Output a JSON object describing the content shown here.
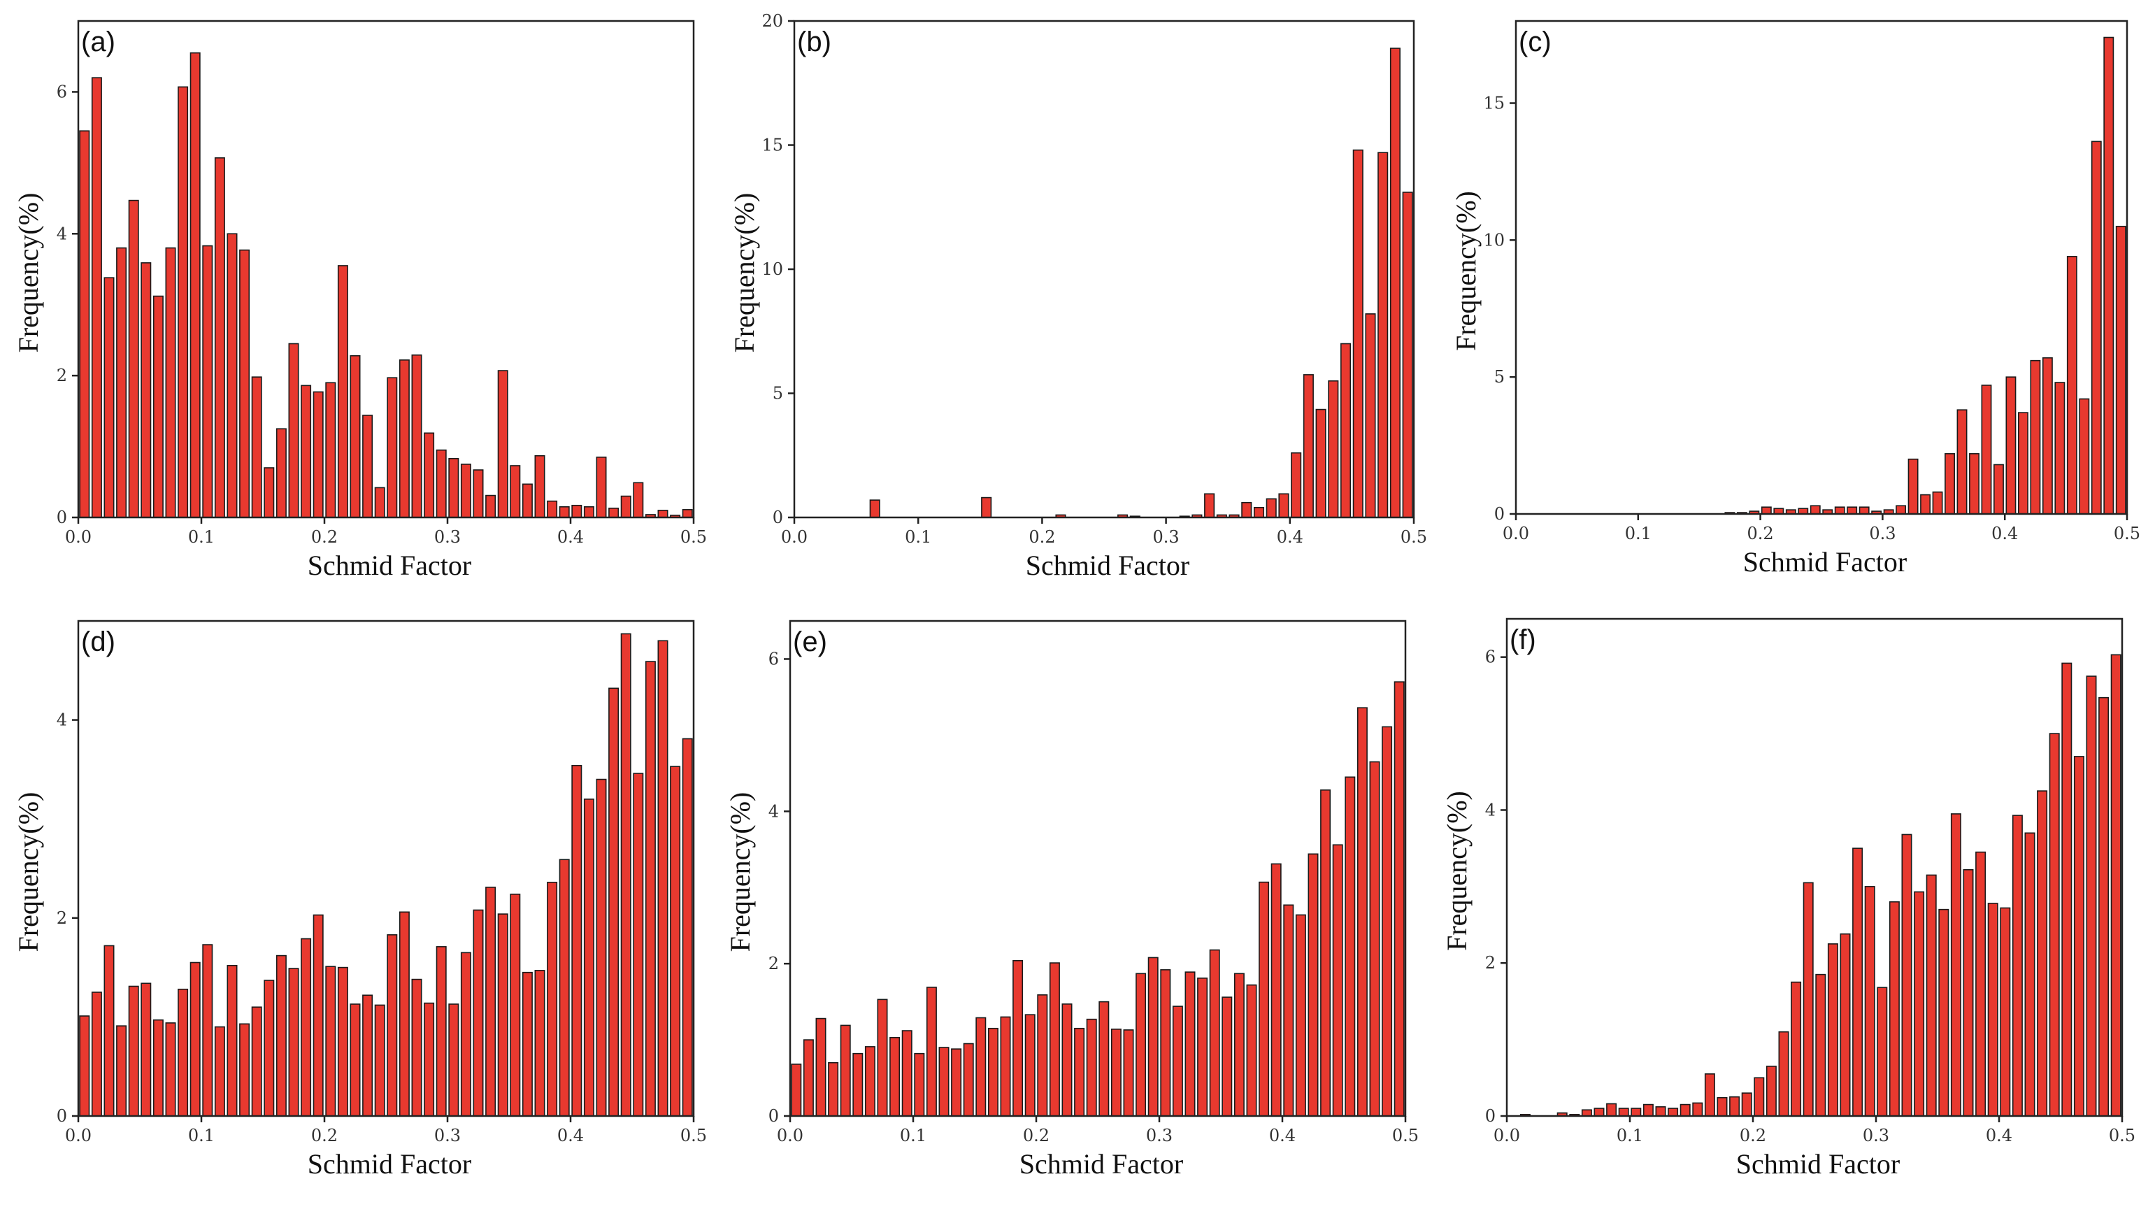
{
  "style": {
    "bar_fill": "#e8392f",
    "bar_edge": "#1a1a1a",
    "axis_color": "#222222"
  },
  "chart_data": [
    {
      "panel": "(a)",
      "type": "bar",
      "xlabel": "Schmid Factor",
      "ylabel": "Frequency(%)",
      "xlim": [
        0.0,
        0.5
      ],
      "ylim": [
        0,
        7
      ],
      "xticks": [
        "0.0",
        "0.1",
        "0.2",
        "0.3",
        "0.4",
        "0.5"
      ],
      "yticks": [
        0,
        2,
        4,
        6
      ],
      "bin_width": 0.01,
      "values": [
        5.45,
        6.2,
        3.38,
        3.8,
        4.47,
        3.59,
        3.12,
        3.8,
        6.07,
        6.55,
        3.83,
        5.07,
        4.0,
        3.77,
        1.98,
        0.7,
        1.25,
        2.45,
        1.86,
        1.77,
        1.9,
        3.55,
        2.28,
        1.44,
        0.42,
        1.97,
        2.22,
        2.29,
        1.19,
        0.95,
        0.83,
        0.75,
        0.67,
        0.31,
        2.07,
        0.73,
        0.47,
        0.87,
        0.23,
        0.15,
        0.17,
        0.15,
        0.85,
        0.13,
        0.3,
        0.49,
        0.04,
        0.1,
        0.03,
        0.11
      ]
    },
    {
      "panel": "(b)",
      "type": "bar",
      "xlabel": "Schmid Factor",
      "ylabel": "Frequency(%)",
      "xlim": [
        0.0,
        0.5
      ],
      "ylim": [
        0,
        20
      ],
      "xticks": [
        "0.0",
        "0.1",
        "0.2",
        "0.3",
        "0.4",
        "0.5"
      ],
      "yticks": [
        0,
        5,
        10,
        15,
        20
      ],
      "bin_width": 0.01,
      "values": [
        0,
        0,
        0,
        0,
        0,
        0,
        0.7,
        0,
        0,
        0,
        0,
        0,
        0,
        0,
        0,
        0.8,
        0,
        0,
        0,
        0,
        0,
        0.1,
        0,
        0,
        0,
        0,
        0.1,
        0.05,
        0,
        0,
        0,
        0.05,
        0.1,
        0.95,
        0.1,
        0.1,
        0.6,
        0.4,
        0.75,
        0.95,
        2.6,
        5.75,
        4.35,
        5.5,
        7.0,
        14.8,
        8.2,
        14.7,
        18.9,
        13.1
      ]
    },
    {
      "panel": "(c)",
      "type": "bar",
      "xlabel": "Schmid Factor",
      "ylabel": "Frequency(%)",
      "xlim": [
        0.0,
        0.5
      ],
      "ylim": [
        0,
        18
      ],
      "xticks": [
        "0.0",
        "0.1",
        "0.2",
        "0.3",
        "0.4",
        "0.5"
      ],
      "yticks": [
        0,
        5,
        10,
        15
      ],
      "bin_width": 0.01,
      "values": [
        0,
        0,
        0,
        0,
        0,
        0,
        0,
        0,
        0,
        0,
        0,
        0,
        0,
        0,
        0,
        0,
        0,
        0.05,
        0.05,
        0.1,
        0.25,
        0.2,
        0.15,
        0.2,
        0.3,
        0.15,
        0.25,
        0.25,
        0.25,
        0.1,
        0.15,
        0.3,
        2.0,
        0.7,
        0.8,
        2.2,
        3.8,
        2.2,
        4.7,
        1.8,
        5.0,
        3.7,
        5.6,
        5.7,
        4.8,
        9.4,
        4.2,
        13.6,
        17.4,
        10.5
      ]
    },
    {
      "panel": "(d)",
      "type": "bar",
      "xlabel": "Schmid Factor",
      "ylabel": "Frequency(%)",
      "xlim": [
        0.0,
        0.5
      ],
      "ylim": [
        0,
        5
      ],
      "xticks": [
        "0.0",
        "0.1",
        "0.2",
        "0.3",
        "0.4",
        "0.5"
      ],
      "yticks": [
        0,
        2,
        4
      ],
      "bin_width": 0.01,
      "values": [
        1.01,
        1.25,
        1.72,
        0.91,
        1.31,
        1.34,
        0.97,
        0.94,
        1.28,
        1.55,
        1.73,
        0.9,
        1.52,
        0.93,
        1.1,
        1.37,
        1.62,
        1.49,
        1.79,
        2.03,
        1.51,
        1.5,
        1.13,
        1.22,
        1.12,
        1.83,
        2.06,
        1.38,
        1.14,
        1.71,
        1.13,
        1.65,
        2.08,
        2.31,
        2.04,
        2.24,
        1.45,
        1.47,
        2.36,
        2.59,
        3.54,
        3.2,
        3.4,
        4.32,
        4.87,
        3.46,
        4.59,
        4.8,
        3.53,
        3.81
      ]
    },
    {
      "panel": "(e)",
      "type": "bar",
      "xlabel": "Schmid Factor",
      "ylabel": "Frequency(%)",
      "xlim": [
        0.0,
        0.5
      ],
      "ylim": [
        0,
        6.5
      ],
      "xticks": [
        "0.0",
        "0.1",
        "0.2",
        "0.3",
        "0.4",
        "0.5"
      ],
      "yticks": [
        0,
        2,
        4,
        6
      ],
      "bin_width": 0.01,
      "values": [
        0.68,
        1.0,
        1.28,
        0.7,
        1.19,
        0.82,
        0.91,
        1.53,
        1.03,
        1.12,
        0.82,
        1.69,
        0.9,
        0.88,
        0.95,
        1.29,
        1.15,
        1.3,
        2.04,
        1.33,
        1.59,
        2.01,
        1.47,
        1.15,
        1.27,
        1.5,
        1.14,
        1.13,
        1.87,
        2.08,
        1.92,
        1.44,
        1.89,
        1.81,
        2.18,
        1.56,
        1.87,
        1.72,
        3.07,
        3.31,
        2.77,
        2.64,
        3.44,
        4.28,
        3.56,
        4.45,
        5.36,
        4.65,
        5.11,
        5.7
      ]
    },
    {
      "panel": "(f)",
      "type": "bar",
      "xlabel": "Schmid Factor",
      "ylabel": "Frequency(%)",
      "xlim": [
        0.0,
        0.5
      ],
      "ylim": [
        0,
        6.5
      ],
      "xticks": [
        "0.0",
        "0.1",
        "0.2",
        "0.3",
        "0.4",
        "0.5"
      ],
      "yticks": [
        0,
        2,
        4,
        6
      ],
      "bin_width": 0.01,
      "values": [
        0,
        0.02,
        0,
        0,
        0.04,
        0.02,
        0.08,
        0.1,
        0.16,
        0.1,
        0.1,
        0.15,
        0.12,
        0.1,
        0.15,
        0.17,
        0.55,
        0.24,
        0.25,
        0.3,
        0.5,
        0.65,
        1.1,
        1.75,
        3.05,
        1.85,
        2.25,
        2.38,
        3.5,
        3.0,
        1.68,
        2.8,
        3.68,
        2.93,
        3.15,
        2.7,
        3.95,
        3.22,
        3.45,
        2.78,
        2.72,
        3.93,
        3.7,
        4.25,
        5.0,
        5.92,
        4.7,
        5.75,
        5.47,
        6.03
      ]
    }
  ]
}
